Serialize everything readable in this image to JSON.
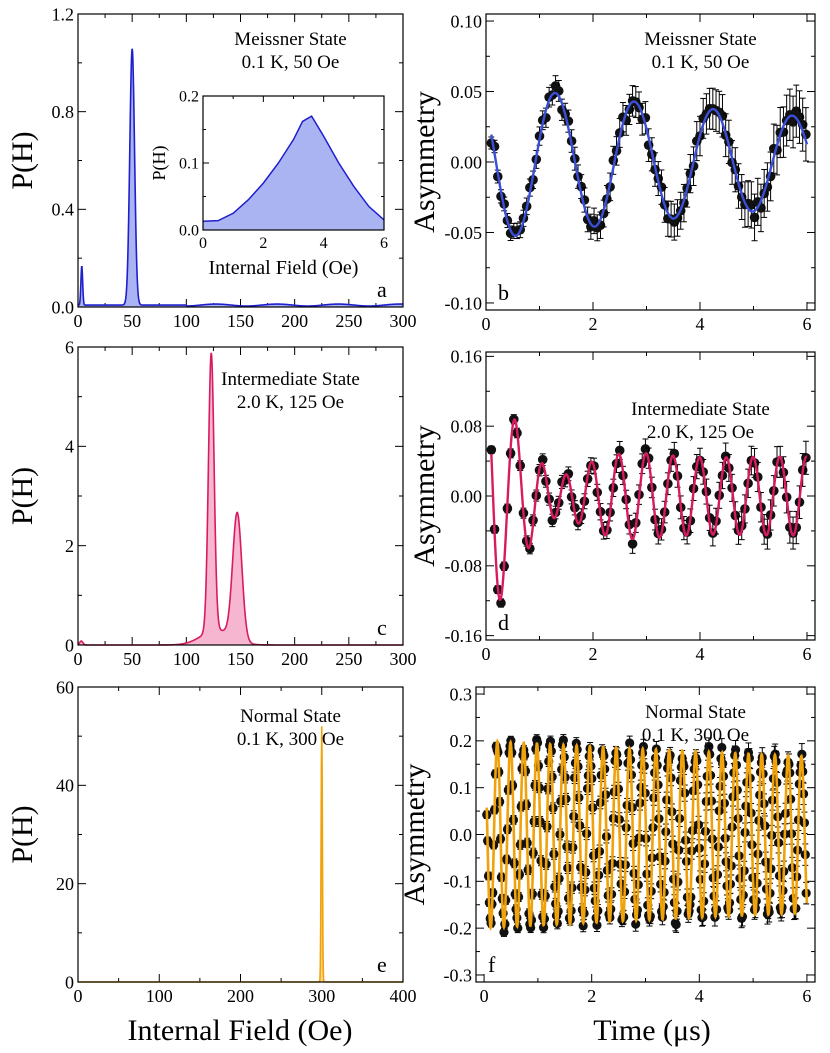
{
  "figure": {
    "x_title_left": "Internal Field (Oe)",
    "x_title_right": "Time (μs)"
  },
  "chart_data": [
    {
      "id": "a",
      "type": "area",
      "panel_letter": "a",
      "ylabel": "P(H)",
      "xlabel": "",
      "xlim": [
        0,
        300
      ],
      "ylim": [
        0,
        1.2
      ],
      "xticks": [
        0,
        50,
        100,
        150,
        200,
        250,
        300
      ],
      "yticks": [
        0.0,
        0.4,
        0.8,
        1.2
      ],
      "ytick_labels": [
        "0.0",
        "0.4",
        "0.8",
        "1.2"
      ],
      "annotation": [
        "Meissner State",
        "0.1 K, 50 Oe"
      ],
      "color": "#1f1fcc",
      "fill": "#aab4f2",
      "peaks": [
        {
          "center": 50,
          "height": 1.05,
          "width": 2.2
        },
        {
          "center": 3.5,
          "height": 0.16,
          "width": 0.8
        }
      ],
      "baseline": 0.008,
      "inset": {
        "type": "area",
        "xlabel": "Internal Field (Oe)",
        "ylabel": "P(H)",
        "xlim": [
          0,
          6
        ],
        "ylim": [
          0,
          0.2
        ],
        "xticks": [
          0,
          2,
          4,
          6
        ],
        "yticks": [
          0.0,
          0.1,
          0.2
        ],
        "ytick_labels": [
          "0.0",
          "0.1",
          "0.2"
        ],
        "x": [
          0,
          0.5,
          1,
          1.5,
          2,
          2.5,
          3,
          3.3,
          3.6,
          4,
          4.5,
          5,
          5.5,
          6
        ],
        "y": [
          0.013,
          0.014,
          0.025,
          0.045,
          0.07,
          0.1,
          0.135,
          0.162,
          0.17,
          0.14,
          0.1,
          0.065,
          0.035,
          0.015
        ]
      }
    },
    {
      "id": "b",
      "type": "scatter+line",
      "panel_letter": "b",
      "ylabel": "Asymmetry",
      "xlabel": "",
      "xlim": [
        0,
        6.15
      ],
      "ylim": [
        -0.105,
        0.105
      ],
      "xticks": [
        0,
        2,
        4,
        6
      ],
      "yticks": [
        -0.1,
        -0.05,
        0.0,
        0.05,
        0.1
      ],
      "ytick_labels": [
        "-0.10",
        "-0.05",
        "0.00",
        "0.05",
        "0.10"
      ],
      "annotation": [
        "Meissner State",
        "0.1 K, 50 Oe"
      ],
      "fit_color": "#3a4fd8",
      "model": {
        "amplitude": 0.055,
        "frequency_MHz": 0.677,
        "phase_rad": 0.78,
        "decay_rate": 0.09,
        "t_start": 0.1,
        "t_end": 6.0
      }
    },
    {
      "id": "c",
      "type": "area",
      "panel_letter": "c",
      "ylabel": "P(H)",
      "xlabel": "",
      "xlim": [
        0,
        300
      ],
      "ylim": [
        0,
        6
      ],
      "xticks": [
        0,
        50,
        100,
        150,
        200,
        250,
        300
      ],
      "yticks": [
        0,
        2,
        4,
        6
      ],
      "ytick_labels": [
        "0",
        "2",
        "4",
        "6"
      ],
      "annotation": [
        "Intermediate State",
        "2.0 K, 125 Oe"
      ],
      "color": "#d81b60",
      "fill": "#f6b6cf",
      "peaks": [
        {
          "center": 123,
          "height": 5.6,
          "width": 2.6
        },
        {
          "center": 147,
          "height": 2.55,
          "width": 4.2
        },
        {
          "center": 128,
          "height": 0.3,
          "width": 14
        },
        {
          "center": 3,
          "height": 0.08,
          "width": 1.5
        }
      ],
      "baseline": 0.0
    },
    {
      "id": "d",
      "type": "scatter+line",
      "panel_letter": "d",
      "ylabel": "Asymmetry",
      "xlabel": "",
      "xlim": [
        0,
        6.15
      ],
      "ylim": [
        -0.165,
        0.165
      ],
      "xticks": [
        0,
        2,
        4,
        6
      ],
      "yticks": [
        -0.16,
        -0.08,
        0.0,
        0.08,
        0.16
      ],
      "ytick_labels": [
        "-0.16",
        "-0.08",
        "0.00",
        "0.08",
        "0.16"
      ],
      "annotation": [
        "Intermediate State",
        "2.0 K, 125 Oe"
      ],
      "fit_color": "#d81b60",
      "model": {
        "components": [
          {
            "amplitude": 0.105,
            "frequency_MHz": 1.67,
            "phase_rad": 0.1,
            "decay_rate": 1.1
          },
          {
            "amplitude": 0.045,
            "frequency_MHz": 2.0,
            "phase_rad": 0.1,
            "decay_rate": 0.0
          }
        ],
        "t_start": 0.1,
        "t_end": 6.0
      }
    },
    {
      "id": "e",
      "type": "area",
      "panel_letter": "e",
      "ylabel": "P(H)",
      "xlabel": "Internal Field (Oe)",
      "xlim": [
        0,
        400
      ],
      "ylim": [
        0,
        60
      ],
      "xticks": [
        0,
        100,
        200,
        300,
        400
      ],
      "yticks": [
        0,
        20,
        40,
        60
      ],
      "ytick_labels": [
        "0",
        "20",
        "40",
        "60"
      ],
      "annotation": [
        "Normal State",
        "0.1 K, 300 Oe"
      ],
      "color": "#f0a20a",
      "fill": "#fbd68a",
      "peaks": [
        {
          "center": 300,
          "height": 52,
          "width": 0.75
        }
      ],
      "baseline": 0.0
    },
    {
      "id": "f",
      "type": "scatter+line",
      "panel_letter": "f",
      "ylabel": "Asymmetry",
      "xlabel": "Time (μs)",
      "xlim": [
        -0.15,
        6.15
      ],
      "ylim": [
        -0.315,
        0.315
      ],
      "xticks": [
        0,
        2,
        4,
        6
      ],
      "yticks": [
        -0.3,
        -0.2,
        -0.1,
        0.0,
        0.1,
        0.2,
        0.3
      ],
      "ytick_labels": [
        "-0.3",
        "-0.2",
        "-0.1",
        "0.0",
        "0.1",
        "0.2",
        "0.3"
      ],
      "annotation": [
        "Normal State",
        "0.1 K,  300 Oe"
      ],
      "fit_color": "#f0a20a",
      "model": {
        "amplitude": 0.2,
        "frequency_MHz": 4.07,
        "phase_rad": 0.0,
        "decay_rate": 0.03,
        "t_start": 0.05,
        "t_end": 6.0
      }
    }
  ]
}
